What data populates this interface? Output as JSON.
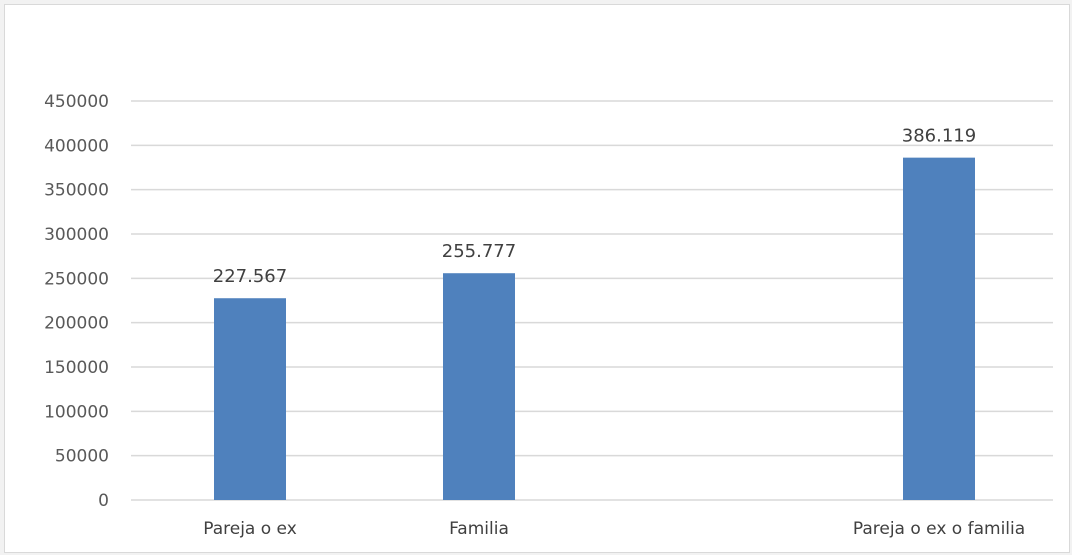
{
  "chart_data": {
    "type": "bar",
    "title": "",
    "xlabel": "",
    "ylabel": "",
    "categories": [
      "Pareja o ex",
      "Familia",
      "Pareja o ex o familia"
    ],
    "values": [
      227567,
      255777,
      386119
    ],
    "data_labels": [
      "227.567",
      "255.777",
      "386.119"
    ],
    "y_ticks": [
      "0",
      "50000",
      "100000",
      "150000",
      "200000",
      "250000",
      "300000",
      "350000",
      "400000",
      "450000"
    ],
    "ylim": [
      0,
      450000
    ],
    "grid": true,
    "legend": "none",
    "bar_color": "#4f81bd",
    "grid_color": "#d9d9d9"
  }
}
